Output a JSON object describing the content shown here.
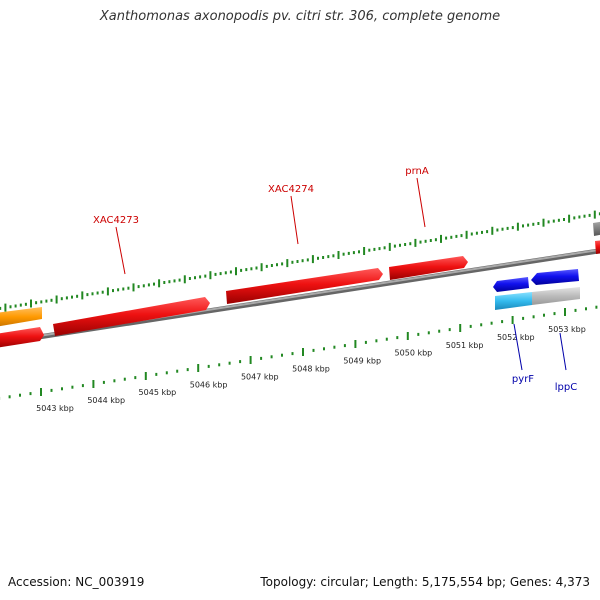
{
  "title": "Xanthomonas axonopodis pv. citri str. 306, complete genome",
  "colors": {
    "forward_gene": "#ee1111",
    "reverse_gene": "#1111ee",
    "reverse_light": "#33bbee",
    "orange_feature": "#ff9900",
    "grey_feature": "#999999",
    "backbone": "#888888",
    "tick": "#228822",
    "label_forward": "#cc0000",
    "label_reverse": "#0000aa"
  },
  "scale": {
    "ticks": [
      {
        "label": "5043 kbp",
        "kbp": 5043
      },
      {
        "label": "5044 kbp",
        "kbp": 5044
      },
      {
        "label": "5045 kbp",
        "kbp": 5045
      },
      {
        "label": "5046 kbp",
        "kbp": 5046
      },
      {
        "label": "5047 kbp",
        "kbp": 5047
      },
      {
        "label": "5048 kbp",
        "kbp": 5048
      },
      {
        "label": "5049 kbp",
        "kbp": 5049
      },
      {
        "label": "5050 kbp",
        "kbp": 5050
      },
      {
        "label": "5051 kbp",
        "kbp": 5051
      },
      {
        "label": "5052 kbp",
        "kbp": 5052
      },
      {
        "label": "5053 kbp",
        "kbp": 5053
      }
    ]
  },
  "gene_labels": {
    "forward": [
      {
        "name": "XAC4273"
      },
      {
        "name": "XAC4274"
      },
      {
        "name": "prnA"
      }
    ],
    "reverse": [
      {
        "name": "pyrF"
      },
      {
        "name": "lppC"
      }
    ]
  },
  "footer": {
    "accession": "Accession: NC_003919",
    "topology": "Topology: circular; Length: 5,175,554 bp; Genes: 4,373"
  }
}
